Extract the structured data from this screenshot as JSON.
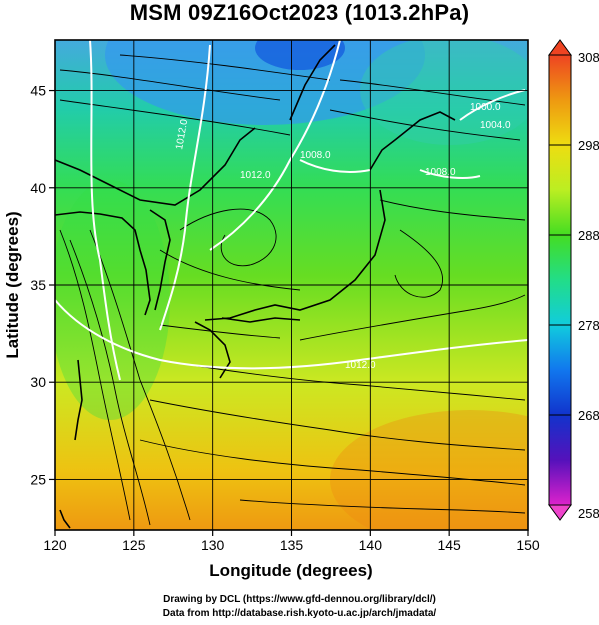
{
  "title": "MSM 09Z16Oct2023 (1013.2hPa)",
  "map": {
    "x_axis": {
      "label": "Longitude (degrees)",
      "range": [
        120,
        150
      ],
      "ticks": [
        120,
        125,
        130,
        135,
        140,
        145,
        150
      ],
      "tick_labels": [
        "120",
        "125",
        "130",
        "135",
        "140",
        "145",
        "150"
      ]
    },
    "y_axis": {
      "label": "Latitude  (degrees)",
      "range": [
        22.4,
        47.6
      ],
      "ticks": [
        25,
        30,
        35,
        40,
        45
      ],
      "tick_labels": [
        "25",
        "30",
        "35",
        "40",
        "45"
      ]
    },
    "contour_labels": [
      "1012.0",
      "1008.0",
      "1012.0",
      "1008.0",
      "1004.0",
      "1000.0",
      "1012.0"
    ],
    "colorbar": {
      "ticks": [
        258,
        268,
        278,
        288,
        298,
        308
      ],
      "tick_labels": [
        "258",
        "268",
        "278",
        "288",
        "298",
        "308"
      ],
      "colors": [
        "#cc11cc",
        "#3311cc",
        "#1144ee",
        "#11aaee",
        "#22dd99",
        "#22dd22",
        "#aaee22",
        "#eeee11",
        "#ee9911",
        "#ee4422"
      ]
    }
  },
  "footer": {
    "line1": "Drawing by DCL (https://www.gfd-dennou.org/library/dcl/)",
    "line2": "Data from http://database.rish.kyoto-u.ac.jp/arch/jmadata/"
  }
}
